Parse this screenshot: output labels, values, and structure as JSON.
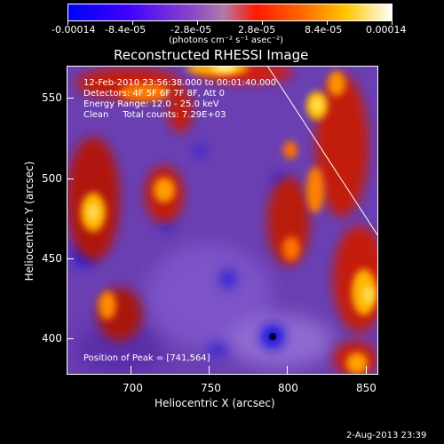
{
  "colorbar": {
    "ticks": [
      "-0.00014",
      "-8.4e-05",
      "-2.8e-05",
      "2.8e-05",
      "8.4e-05",
      "0.00014"
    ],
    "units": "(photons cm⁻² s⁻¹ asec⁻²)"
  },
  "title": "Reconstructed RHESSI Image",
  "info": {
    "time_range": "12-Feb-2010 23:56:38.000 to 00:01:40.000",
    "detectors": "Detectors: 4F 5F 6F 7F 8F, Att 0",
    "energy_range": "Energy Range: 12.0 - 25.0 keV",
    "method_counts": "Clean     Total counts: 7.29E+03",
    "peak": "Position of Peak = [741,564]"
  },
  "axes": {
    "xlabel": "Heliocentric X (arcsec)",
    "ylabel": "Heliocentric Y (arcsec)",
    "x_ticks": [
      "700",
      "750",
      "800",
      "850"
    ],
    "y_ticks": [
      "550",
      "500",
      "450",
      "400"
    ]
  },
  "footer": {
    "date": "2-Aug-2013 23:39"
  },
  "colors": {
    "background": "#000000",
    "text": "#ffffff",
    "colormap": [
      "#0000ff",
      "#5a00ff",
      "#8a44cc",
      "#a65aa6",
      "#ff1a00",
      "#ff8000",
      "#ffd200",
      "#ffffff"
    ]
  }
}
